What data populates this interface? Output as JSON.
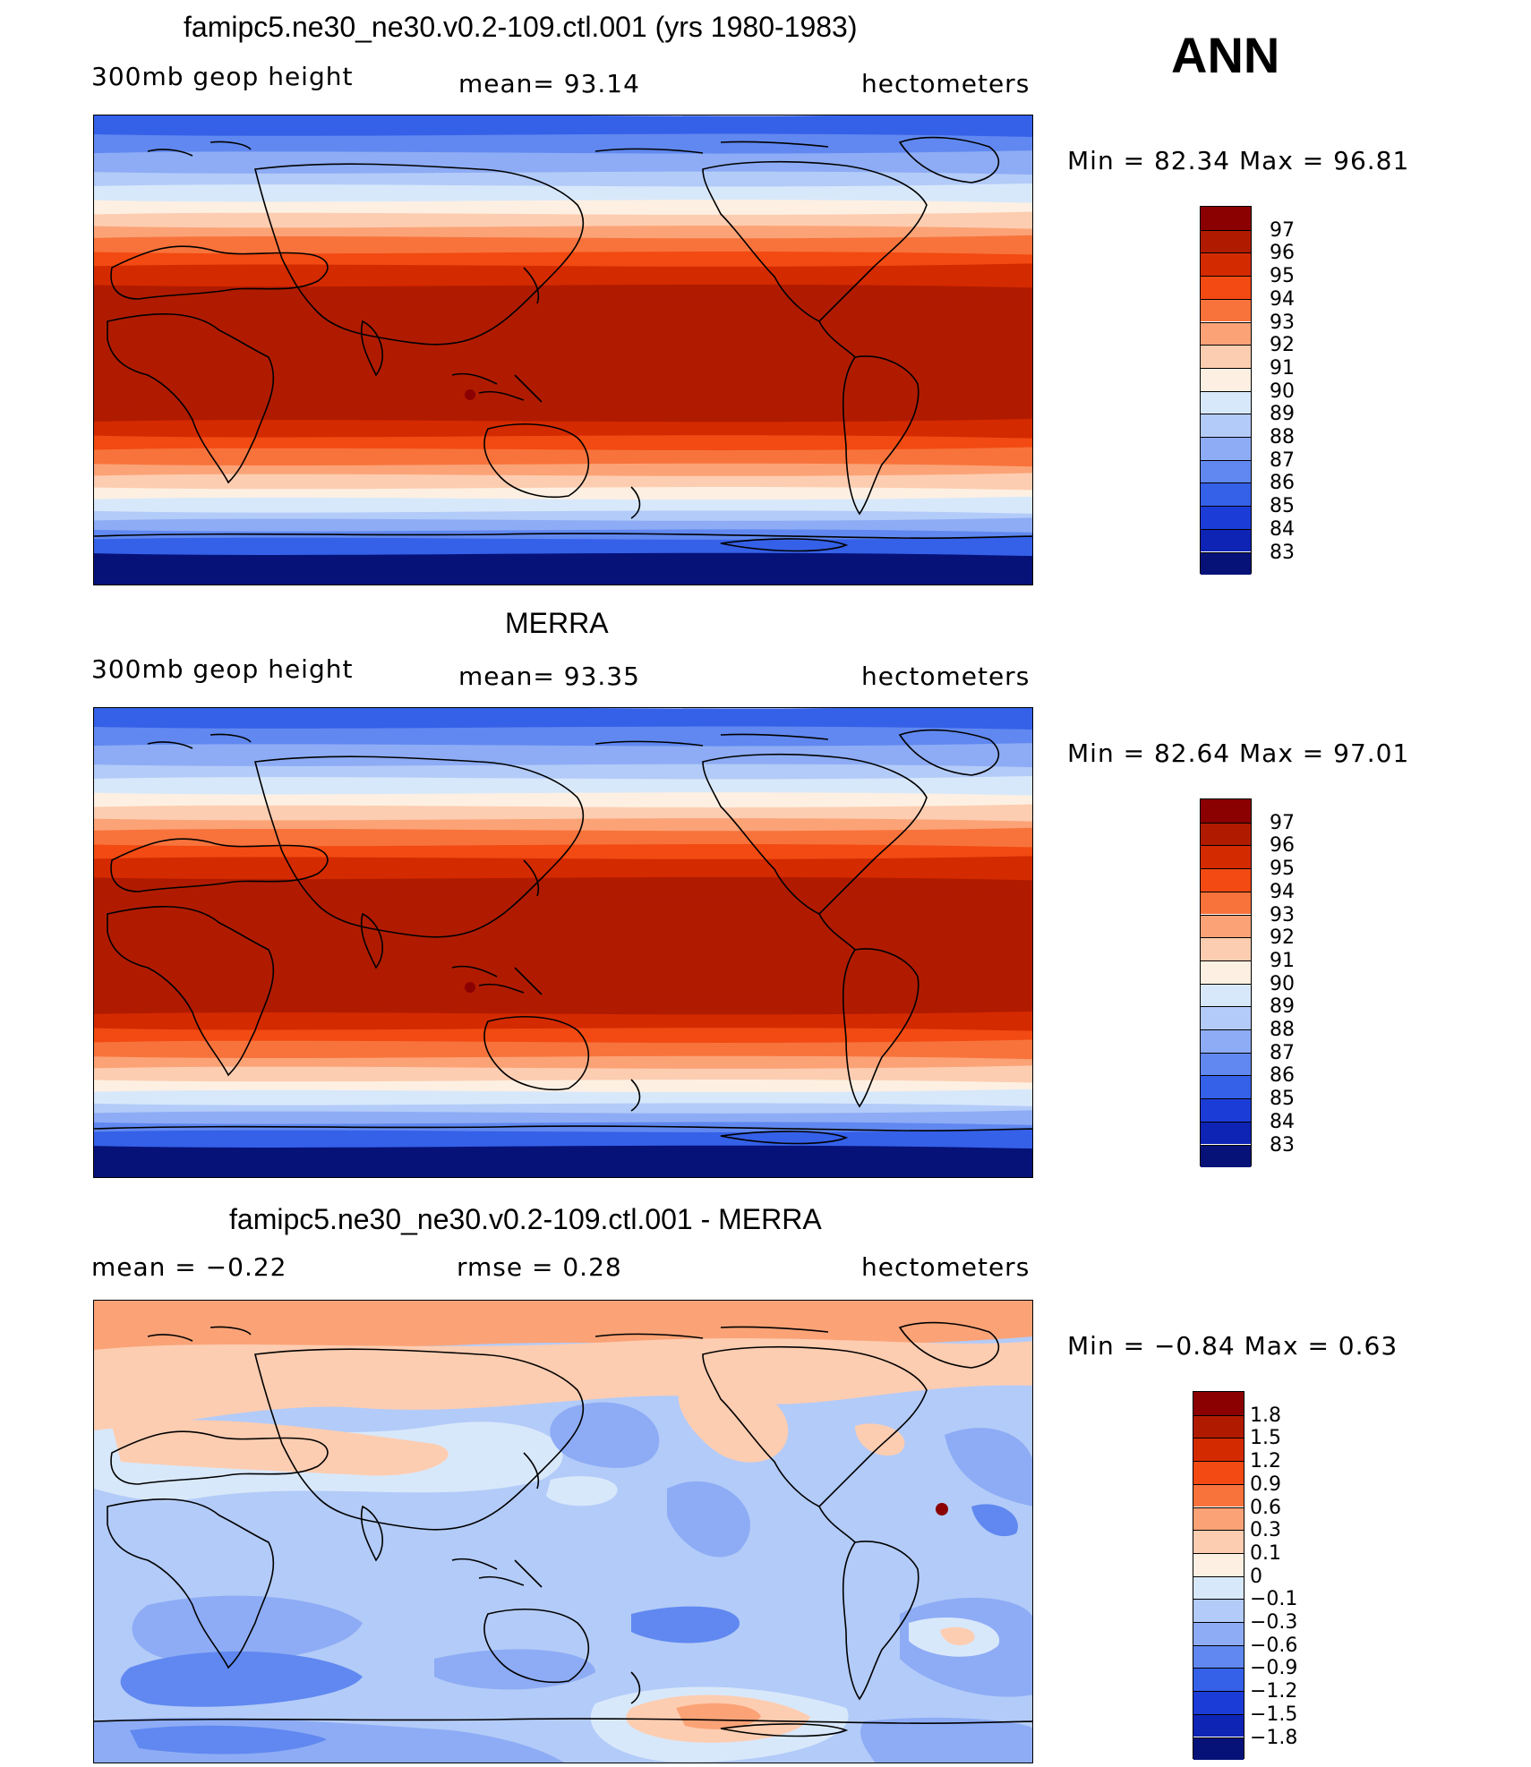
{
  "figure": {
    "season": "ANN",
    "panels": [
      {
        "title": "famipc5.ne30_ne30.v0.2-109.ctl.001 (yrs 1980-1983)",
        "left_label": "300mb  geop  height",
        "center_label": "mean=   93.14",
        "right_label": "hectometers",
        "minmax": "Min  =    82.34  Max  =    96.81",
        "colormap": "abs",
        "colorbar": {
          "labels": [
            "97",
            "96",
            "95",
            "94",
            "93",
            "92",
            "91",
            "90",
            "89",
            "88",
            "87",
            "86",
            "85",
            "84",
            "83"
          ],
          "colors": [
            "#8b0000",
            "#b01b00",
            "#d42a00",
            "#f24a12",
            "#f8733c",
            "#fba377",
            "#fdcdb1",
            "#fdf0e2",
            "#d8e8fb",
            "#b3cbf8",
            "#8eacf5",
            "#6088f0",
            "#3560e8",
            "#1c3cd8",
            "#0d24b4",
            "#061278"
          ]
        }
      },
      {
        "title": "MERRA",
        "left_label": "300mb  geop  height",
        "center_label": "mean=   93.35",
        "right_label": "hectometers",
        "minmax": "Min  =    82.64  Max  =    97.01",
        "colormap": "abs",
        "colorbar": {
          "labels": [
            "97",
            "96",
            "95",
            "94",
            "93",
            "92",
            "91",
            "90",
            "89",
            "88",
            "87",
            "86",
            "85",
            "84",
            "83"
          ],
          "colors": [
            "#8b0000",
            "#b01b00",
            "#d42a00",
            "#f24a12",
            "#f8733c",
            "#fba377",
            "#fdcdb1",
            "#fdf0e2",
            "#d8e8fb",
            "#b3cbf8",
            "#8eacf5",
            "#6088f0",
            "#3560e8",
            "#1c3cd8",
            "#0d24b4",
            "#061278"
          ]
        }
      },
      {
        "title": "famipc5.ne30_ne30.v0.2-109.ctl.001 - MERRA",
        "left_label": "mean  =    −0.22",
        "center_label": "rmse  =     0.28",
        "right_label": "hectometers",
        "minmax": "Min  =    −0.84  Max  =      0.63",
        "colormap": "diff",
        "colorbar": {
          "labels": [
            "1.8",
            "1.5",
            "1.2",
            "0.9",
            "0.6",
            "0.3",
            "0.1",
            "0",
            "−0.1",
            "−0.3",
            "−0.6",
            "−0.9",
            "−1.2",
            "−1.5",
            "−1.8"
          ],
          "colors": [
            "#8b0000",
            "#b01b00",
            "#d42a00",
            "#f24a12",
            "#f8733c",
            "#fba377",
            "#fdcdb1",
            "#fdf0e2",
            "#d8e8fb",
            "#b3cbf8",
            "#8eacf5",
            "#6088f0",
            "#3560e8",
            "#1c3cd8",
            "#0d24b4",
            "#061278"
          ]
        }
      }
    ]
  }
}
